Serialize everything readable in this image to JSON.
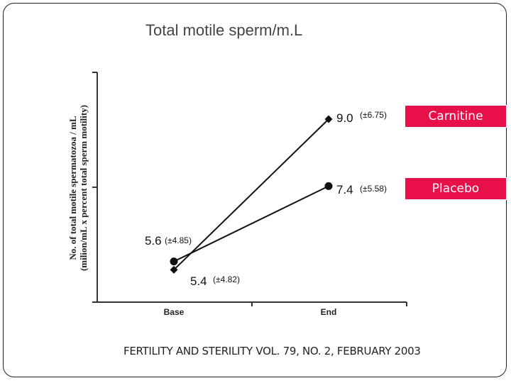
{
  "slide": {
    "title": "Total motile sperm/m.L",
    "citation": "FERTILITY AND STERILITY VOL. 79, NO. 2, FEBRUARY 2003"
  },
  "legend": {
    "carnitine": "Carnitine",
    "placebo": "Placebo",
    "color": "#e8104a"
  },
  "chart_data": {
    "type": "line",
    "title": "Total motile sperm/m.L",
    "ylabel": "No. of total motile spermatozoa / mL (milion/mL x percent total sperm motility)",
    "xlabel": "",
    "categories": [
      "Base",
      "End"
    ],
    "series": [
      {
        "name": "Carnitine",
        "marker": "diamond",
        "values": [
          5.4,
          9.0
        ],
        "labels": [
          "5.4",
          "9.0"
        ],
        "sd_labels": [
          "(±4.82)",
          "(±6.75)"
        ]
      },
      {
        "name": "Placebo",
        "marker": "circle",
        "values": [
          5.6,
          7.4
        ],
        "labels": [
          "5.6",
          "7.4"
        ],
        "sd_labels": [
          "(±4.85)",
          "(±5.58)"
        ]
      }
    ]
  }
}
